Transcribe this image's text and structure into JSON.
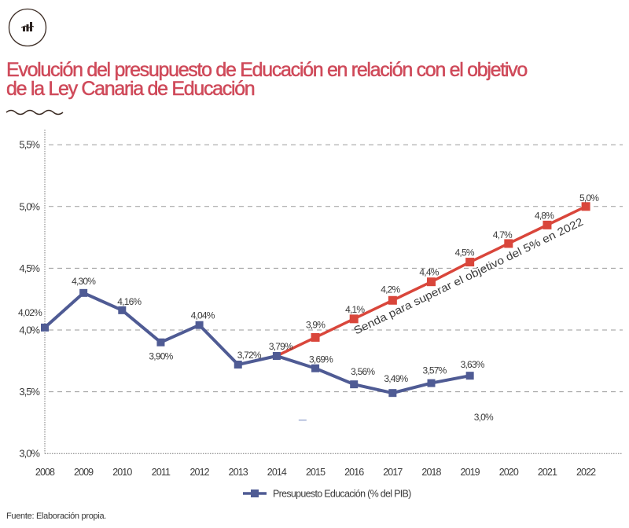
{
  "header": {
    "logo_icon": "chart-logo-icon",
    "title_lines": [
      "Evolución del presupuesto de Educación en relación con el objetivo",
      "de la Ley Canaria de Educación"
    ],
    "title_color": "#cf4a5a"
  },
  "chart_data": {
    "type": "line",
    "title": "Evolución del presupuesto de Educación en relación con el objetivo de la Ley Canaria de Educación",
    "xlabel": "",
    "ylabel": "",
    "categories": [
      "2008",
      "2009",
      "2010",
      "2011",
      "2012",
      "2013",
      "2014",
      "2015",
      "2016",
      "2017",
      "2018",
      "2019",
      "2020",
      "2021",
      "2022"
    ],
    "ylim": [
      3.0,
      5.5
    ],
    "yticks": [
      3.0,
      3.5,
      4.0,
      4.5,
      5.0,
      5.5
    ],
    "ytick_labels": [
      "3,0%",
      "3,5%",
      "4,0%",
      "4,5%",
      "5,0%",
      "5,5%"
    ],
    "grid": true,
    "series": [
      {
        "name": "Presupuesto Educación (% del PIB)",
        "color": "#4f5b94",
        "x": [
          2008,
          2009,
          2010,
          2011,
          2012,
          2013,
          2014,
          2015,
          2016,
          2017,
          2018,
          2019
        ],
        "values": [
          4.02,
          4.3,
          4.16,
          3.9,
          4.04,
          3.72,
          3.79,
          3.69,
          3.56,
          3.49,
          3.57,
          3.63
        ],
        "labels": [
          "4,02%",
          "4,30%",
          "4,16%",
          "3,90%",
          "4,04%",
          "3,72%",
          "3,79%",
          "3,69%",
          "3,56%",
          "3,49%",
          "3,57%",
          "3,63%"
        ]
      },
      {
        "name": "Senda para superar el objetivo del 5% en 2022",
        "color": "#d9463b",
        "x": [
          2014,
          2015,
          2016,
          2017,
          2018,
          2019,
          2020,
          2021,
          2022
        ],
        "values": [
          3.79,
          3.94,
          4.09,
          4.24,
          4.39,
          4.55,
          4.7,
          4.85,
          5.0
        ],
        "labels": [
          "",
          "3,9%",
          "4,1%",
          "4,2%",
          "4,4%",
          "4,5%",
          "4,7%",
          "4,8%",
          "5,0%"
        ]
      }
    ],
    "annotations": [
      {
        "text": "Senda para superar el objetivo del 5% en 2022",
        "x": 2018.97,
        "y": 4.43,
        "along_series": 1
      },
      {
        "text": "3,0%",
        "x": 2019.35,
        "y": 3.29
      },
      {
        "text": "–",
        "x": 2014.67,
        "y": 3.27,
        "color": "#8b9bc9"
      }
    ],
    "legend": {
      "position": "bottom",
      "entries": [
        {
          "label": "Presupuesto Educación (% del PIB)",
          "color": "#4f5b94"
        }
      ]
    }
  },
  "footer": {
    "source": "Fuente: Elaboración propia."
  }
}
